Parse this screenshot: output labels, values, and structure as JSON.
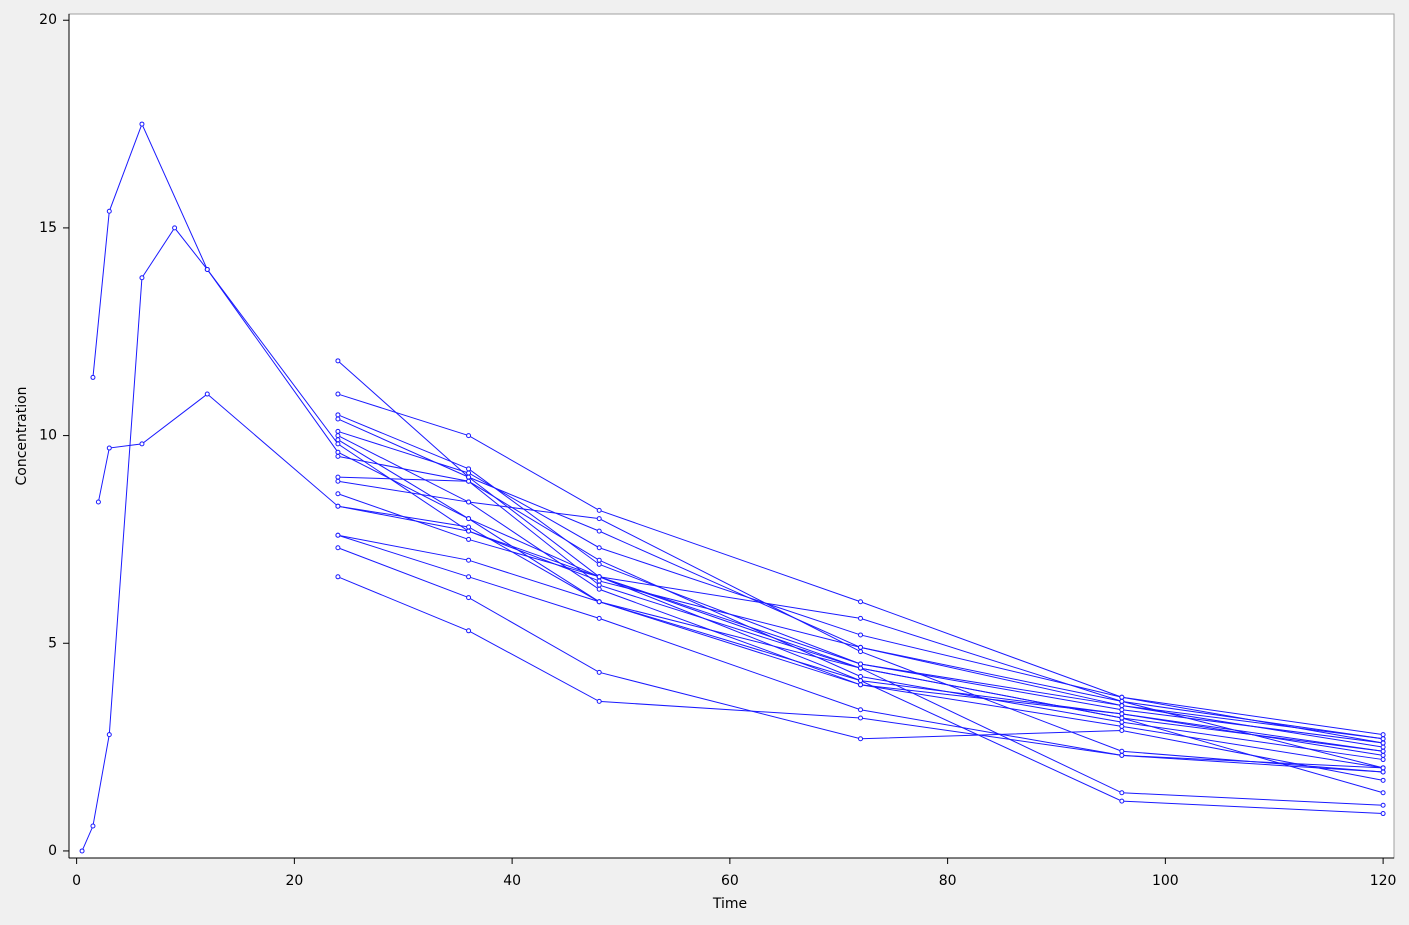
{
  "chart_data": {
    "type": "line",
    "x_label": "Time",
    "y_label": "Concentration",
    "color": "#1a1aff",
    "xlim": [
      -0.7,
      121
    ],
    "ylim": [
      -0.17,
      20.15
    ],
    "xticks": [
      0,
      20,
      40,
      60,
      80,
      100,
      120
    ],
    "yticks": [
      0,
      5,
      10,
      15,
      20
    ],
    "series": [
      {
        "x": [
          1.5,
          3,
          6,
          12,
          24,
          36,
          48,
          72,
          96,
          120
        ],
        "values": [
          11.4,
          15.4,
          17.5,
          14,
          9.8,
          7.7,
          6.6,
          4.5,
          3.4,
          2.6
        ]
      },
      {
        "x": [
          0.5,
          1.5,
          3,
          6,
          9,
          12,
          24,
          36,
          48,
          72,
          96,
          120
        ],
        "values": [
          0,
          0.6,
          2.8,
          13.8,
          15,
          14,
          9.6,
          8.0,
          6.6,
          4.4,
          3.2,
          2.4
        ]
      },
      {
        "x": [
          2,
          3,
          6,
          12,
          24,
          36,
          48,
          72,
          96,
          120
        ],
        "values": [
          8.4,
          9.7,
          9.8,
          11,
          8.3,
          7.7,
          6.5,
          4.9,
          3.6,
          2.7
        ]
      },
      {
        "x": [
          24,
          36,
          48,
          72,
          96,
          120
        ],
        "values": [
          11.8,
          9.0,
          6.6,
          4.1,
          3.3,
          2.3
        ]
      },
      {
        "x": [
          24,
          36,
          48,
          72,
          96,
          120
        ],
        "values": [
          11.0,
          10.0,
          8.2,
          6.0,
          3.7,
          2.8
        ]
      },
      {
        "x": [
          24,
          36,
          48,
          72,
          96,
          120
        ],
        "values": [
          10.5,
          9.2,
          6.9,
          4.5,
          3.5,
          2.7
        ]
      },
      {
        "x": [
          24,
          36,
          48,
          72,
          96,
          120
        ],
        "values": [
          10.4,
          9.0,
          7.7,
          4.9,
          3.5,
          2.5
        ]
      },
      {
        "x": [
          24,
          36,
          48,
          72,
          96,
          120
        ],
        "values": [
          10.1,
          9.1,
          7.3,
          5.2,
          3.7,
          2.6
        ]
      },
      {
        "x": [
          24,
          36,
          48,
          72,
          96,
          120
        ],
        "values": [
          10.0,
          8.4,
          8.0,
          4.8,
          2.4,
          1.9
        ]
      },
      {
        "x": [
          24,
          36,
          48,
          72,
          96,
          120
        ],
        "values": [
          9.9,
          8.0,
          6.0,
          4.0,
          3.0,
          2.0
        ]
      },
      {
        "x": [
          24,
          36,
          48,
          72,
          96,
          120
        ],
        "values": [
          9.5,
          8.9,
          7.0,
          4.2,
          3.1,
          2.2
        ]
      },
      {
        "x": [
          24,
          36,
          48,
          72,
          96,
          120
        ],
        "values": [
          9.0,
          8.9,
          6.4,
          4.4,
          1.4,
          1.1
        ]
      },
      {
        "x": [
          24,
          36,
          48,
          72,
          96,
          120
        ],
        "values": [
          8.9,
          8.4,
          6.3,
          4.0,
          3.3,
          2.4
        ]
      },
      {
        "x": [
          24,
          36,
          48,
          72,
          96,
          120
        ],
        "values": [
          8.6,
          7.5,
          6.6,
          5.6,
          3.6,
          2.0
        ]
      },
      {
        "x": [
          24,
          36,
          48,
          72,
          96,
          120
        ],
        "values": [
          8.3,
          7.8,
          6.0,
          4.1,
          1.2,
          0.9
        ]
      },
      {
        "x": [
          24,
          36,
          48,
          72,
          96,
          120
        ],
        "values": [
          7.6,
          7.0,
          6.0,
          4.4,
          3.2,
          1.4
        ]
      },
      {
        "x": [
          24,
          36,
          48,
          72,
          96,
          120
        ],
        "values": [
          7.6,
          6.6,
          5.6,
          3.4,
          2.3,
          1.9
        ]
      },
      {
        "x": [
          24,
          36,
          48,
          72,
          96,
          120
        ],
        "values": [
          7.3,
          6.1,
          4.3,
          2.7,
          2.9,
          1.7
        ]
      },
      {
        "x": [
          24,
          36,
          48,
          72,
          96,
          120
        ],
        "values": [
          6.6,
          5.3,
          3.6,
          3.2,
          2.3,
          2.0
        ]
      }
    ]
  }
}
